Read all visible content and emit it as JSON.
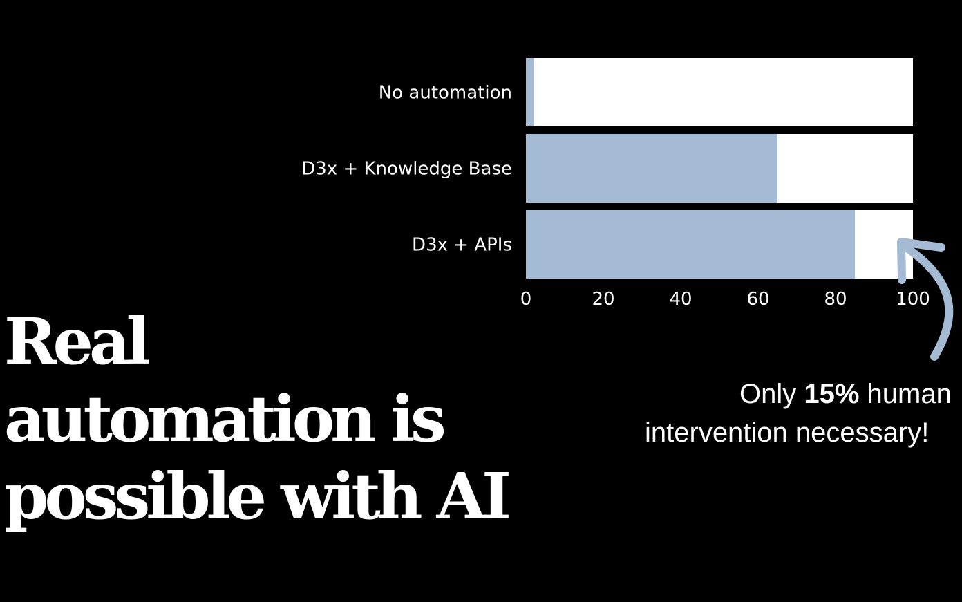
{
  "chart_data": {
    "type": "bar",
    "orientation": "horizontal",
    "stacked": true,
    "categories": [
      "No automation",
      "D3x + Knowledge Base",
      "D3x + APIs"
    ],
    "series": [
      {
        "values": [
          2,
          65,
          85
        ],
        "color": "#a4bbd3"
      },
      {
        "values": [
          98,
          35,
          15
        ],
        "color": "#ffffff"
      }
    ],
    "x_ticks": [
      "0",
      "20",
      "40",
      "60",
      "80",
      "100"
    ],
    "xlim": [
      0,
      100
    ],
    "title": "",
    "xlabel": "",
    "ylabel": "",
    "grid": false
  },
  "headline": {
    "line1": "Real",
    "line2": "automation is",
    "line3": "possible with AI"
  },
  "annotation": {
    "prefix": "Only ",
    "highlight": "15%",
    "suffix": " human",
    "line2": "intervention necessary!"
  },
  "colors": {
    "background": "#000000",
    "accent": "#a4bbd3",
    "text": "#ffffff"
  },
  "icons": {
    "arrow": "curved-arrow-icon"
  }
}
